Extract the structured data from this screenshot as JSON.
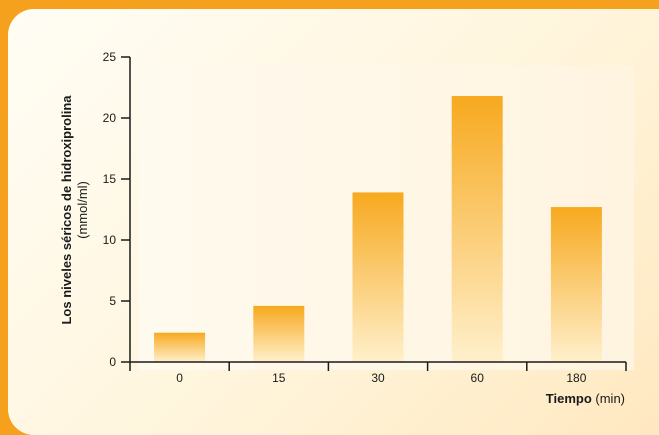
{
  "chart_data": {
    "type": "bar",
    "categories": [
      "0",
      "15",
      "30",
      "60",
      "180"
    ],
    "values": [
      2.4,
      4.6,
      13.9,
      21.8,
      12.7
    ],
    "ylim": [
      0,
      25
    ],
    "yticks": [
      0,
      5,
      10,
      15,
      20,
      25
    ],
    "xlabel": {
      "bold": "Tiempo",
      "rest": " (min)"
    },
    "ylabel_line1": "Los niveles séricos de hidroxiprolina",
    "ylabel_line2": "(mmol/ml)",
    "grid": false,
    "bar_color_top": "#f7a91f",
    "bar_color_bottom": "#fff0cc"
  }
}
